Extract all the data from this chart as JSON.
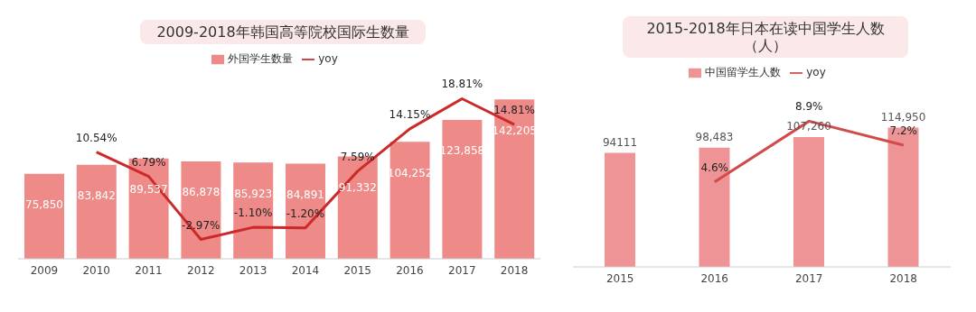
{
  "chart_data": [
    {
      "type": "bar",
      "title": "2009-2018年韩国高等院校国际生数量",
      "categories": [
        "2009",
        "2010",
        "2011",
        "2012",
        "2013",
        "2014",
        "2015",
        "2016",
        "2017",
        "2018"
      ],
      "legend": "top",
      "series": [
        {
          "name": "外国学生数量",
          "color": "#ee8a88",
          "values": [
            75850,
            83842,
            89537,
            86878,
            85923,
            84891,
            91332,
            104252,
            123858,
            142205
          ],
          "value_labels": [
            "75,850",
            "83,842",
            "89,537",
            "86,878",
            "85,923",
            "84,891",
            "91,332",
            "104,252",
            "123,858",
            "142,205"
          ]
        },
        {
          "name": "yoy",
          "type": "line",
          "axis": "y2",
          "color": "#cc2a2a",
          "values": [
            null,
            10.54,
            6.79,
            -2.97,
            -1.1,
            -1.2,
            7.59,
            14.15,
            18.81,
            14.81
          ],
          "value_labels": [
            null,
            "10.54%",
            "6.79%",
            "-2.97%",
            "-1.10%",
            "-1.20%",
            "7.59%",
            "14.15%",
            "18.81%",
            "14.81%"
          ]
        }
      ]
    },
    {
      "type": "bar",
      "title": "2015-2018年日本在读中国学生人数（人）",
      "categories": [
        "2015",
        "2016",
        "2017",
        "2018"
      ],
      "legend": "top",
      "series": [
        {
          "name": "中国留学生人数",
          "color": "#ef9496",
          "values": [
            94111,
            98483,
            107260,
            114950
          ],
          "value_labels": [
            "94111",
            "98,483",
            "107,260",
            "114,950"
          ]
        },
        {
          "name": "yoy",
          "type": "line",
          "axis": "y2",
          "color": "#d24a4a",
          "values": [
            null,
            4.6,
            8.9,
            7.2
          ],
          "value_labels": [
            null,
            "4.6%",
            "8.9%",
            "7.2%"
          ]
        }
      ]
    }
  ]
}
